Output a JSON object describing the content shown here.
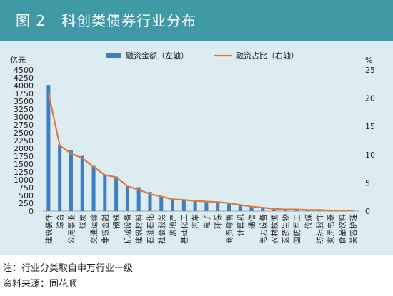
{
  "header": {
    "title": "图 2   科创类债券行业分布"
  },
  "notes": {
    "note": "注：行业分类取自申万行业一级",
    "source": "资料来源：同花顺"
  },
  "colors": {
    "banner": "#3f9aa6",
    "panel": "#ddecf1",
    "bar": "#3d7fc1",
    "line": "#e07a3c"
  },
  "chart_data": {
    "type": "bar",
    "left_unit": "亿元",
    "right_unit": "%",
    "y_left_ticks": [
      "0",
      "250",
      "500",
      "750",
      "1000",
      "1250",
      "1500",
      "1750",
      "2000",
      "2250",
      "2500",
      "2750",
      "3000",
      "3250",
      "3500",
      "3750",
      "4000",
      "4250",
      "4500"
    ],
    "y_right_ticks": [
      "0",
      "5",
      "10",
      "15",
      "20",
      "25"
    ],
    "ylim_left": [
      0,
      4500
    ],
    "ylim_right": [
      0,
      25
    ],
    "legend_placement": "top-center",
    "categories": [
      "建筑装饰",
      "综合",
      "公用事业",
      "煤炭",
      "交通运输",
      "非银金融",
      "钢铁",
      "机械设备",
      "建筑材料",
      "石油石化",
      "社会服务",
      "房地产",
      "基础化工",
      "汽车",
      "电子",
      "环保",
      "商贸零售",
      "计算机",
      "通信",
      "电力设备",
      "农林牧渔",
      "医药生物",
      "国防军工",
      "传媒",
      "纺织服饰",
      "家用电器",
      "食品饮料",
      "美容护理"
    ],
    "series": [
      {
        "name": "融资金额（左轴）",
        "axis": "left",
        "kind": "bar",
        "values": [
          4020,
          2120,
          1930,
          1760,
          1440,
          1140,
          1100,
          800,
          760,
          610,
          470,
          400,
          360,
          320,
          310,
          280,
          250,
          210,
          150,
          110,
          70,
          60,
          50,
          40,
          30,
          25,
          15,
          10
        ]
      },
      {
        "name": "融资占比（右轴）",
        "axis": "right",
        "kind": "line",
        "values": [
          20.9,
          11.6,
          10.2,
          9.4,
          7.8,
          6.4,
          6.0,
          4.4,
          3.8,
          3.0,
          2.6,
          2.1,
          2.0,
          1.8,
          1.7,
          1.6,
          1.4,
          1.1,
          0.8,
          0.6,
          0.4,
          0.3,
          0.3,
          0.2,
          0.2,
          0.1,
          0.1,
          0.1
        ]
      }
    ]
  }
}
